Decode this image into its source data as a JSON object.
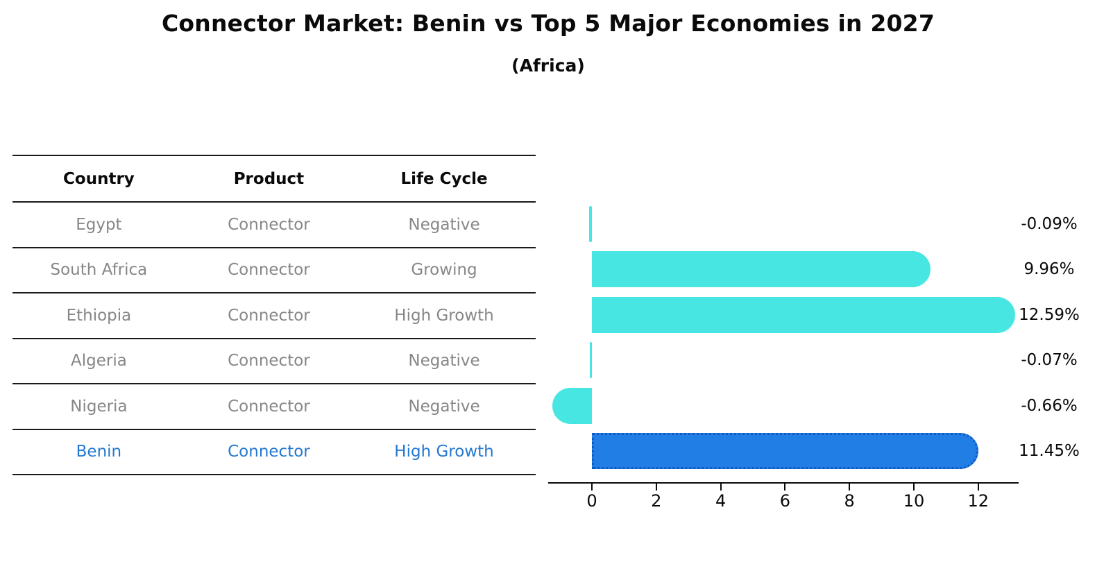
{
  "title": "Connector Market: Benin vs Top 5 Major Economies in 2027",
  "subtitle": "(Africa)",
  "table": {
    "headers": [
      "Country",
      "Product",
      "Life Cycle"
    ],
    "rows": [
      {
        "country": "Egypt",
        "product": "Connector",
        "life_cycle": "Negative",
        "highlight": false
      },
      {
        "country": "South Africa",
        "product": "Connector",
        "life_cycle": "Growing",
        "highlight": false
      },
      {
        "country": "Ethiopia",
        "product": "Connector",
        "life_cycle": "High Growth",
        "highlight": false
      },
      {
        "country": "Algeria",
        "product": "Connector",
        "life_cycle": "Negative",
        "highlight": false
      },
      {
        "country": "Nigeria",
        "product": "Connector",
        "life_cycle": "Negative",
        "highlight": false
      },
      {
        "country": "Benin",
        "product": "Connector",
        "life_cycle": "High Growth",
        "highlight": true
      }
    ]
  },
  "chart_data": {
    "type": "bar",
    "orientation": "horizontal",
    "title": "Connector Market: Benin vs Top 5 Major Economies in 2027",
    "subtitle": "(Africa)",
    "categories": [
      "Egypt",
      "South Africa",
      "Ethiopia",
      "Algeria",
      "Nigeria",
      "Benin"
    ],
    "values": [
      -0.09,
      9.96,
      12.59,
      -0.07,
      -0.66,
      11.45
    ],
    "value_labels": [
      "-0.09%",
      "9.96%",
      "12.59%",
      "-0.07%",
      "-0.66%",
      "11.45%"
    ],
    "unit": "%",
    "xticks": [
      0,
      2,
      4,
      6,
      8,
      10,
      12
    ],
    "xlim": [
      -1.36,
      13.25
    ],
    "grid": false,
    "legend": null,
    "highlight_index": 5,
    "bar_color": "#48E6E2",
    "highlight_bar_color": "#207EE4",
    "highlight_edge_color": "#1059C8"
  },
  "colors": {
    "background": "#ffffff",
    "table_line": "#1a1a1a",
    "table_text": "#878787",
    "header_text": "#0a0a0a",
    "highlight_text": "#2478D0",
    "axis": "#0a0a0a",
    "value_label_text": "#0a0a0a"
  }
}
